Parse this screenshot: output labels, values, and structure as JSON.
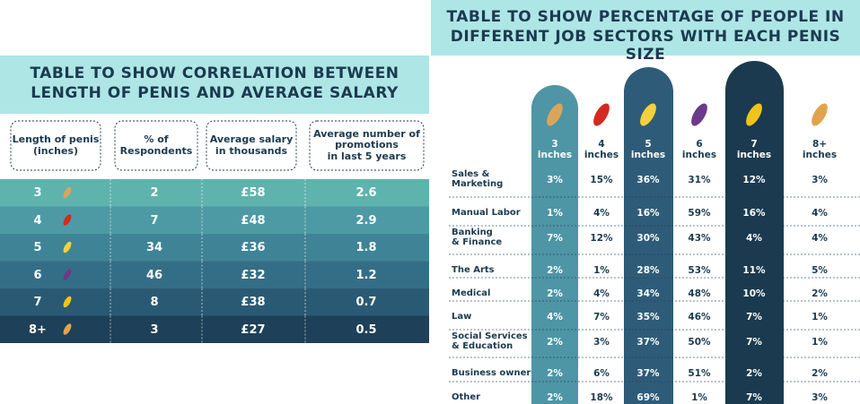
{
  "left": {
    "title": [
      "TABLE TO SHOW CORRELATION BETWEEN",
      "LENGTH OF PENIS AND AVERAGE SALARY"
    ],
    "headers": [
      "Length of penis\n(inches)",
      "% of\nRespondents",
      "Average salary\nin thousands",
      "Average number of\npromotions\nin last 5 years"
    ],
    "rows": [
      [
        "3",
        "2",
        "£58",
        "2.6"
      ],
      [
        "4",
        "7",
        "£48",
        "2.9"
      ],
      [
        "5",
        "34",
        "£36",
        "1.8"
      ],
      [
        "6",
        "46",
        "£32",
        "1.2"
      ],
      [
        "7",
        "8",
        "£38",
        "0.7"
      ],
      [
        "8+",
        "3",
        "£27",
        "0.5"
      ]
    ]
  },
  "right": {
    "title": [
      "TABLE TO SHOW PERCENTAGE OF PEOPLE IN",
      "DIFFERENT JOB SECTORS WITH EACH PENIS SIZE"
    ],
    "columns": [
      "3\ninches",
      "4\ninches",
      "5\ninches",
      "6\ninches",
      "7\ninches",
      "8+\ninches"
    ],
    "rows": [
      {
        "label": "Sales &\nMarketing",
        "values": [
          "3%",
          "15%",
          "36%",
          "31%",
          "12%",
          "3%"
        ]
      },
      {
        "label": "Manual Labor",
        "values": [
          "1%",
          "4%",
          "16%",
          "59%",
          "16%",
          "4%"
        ]
      },
      {
        "label": "Banking\n& Finance",
        "values": [
          "7%",
          "12%",
          "30%",
          "43%",
          "4%",
          "4%"
        ]
      },
      {
        "label": "The Arts",
        "values": [
          "2%",
          "1%",
          "28%",
          "53%",
          "11%",
          "5%"
        ]
      },
      {
        "label": "Medical",
        "values": [
          "2%",
          "4%",
          "34%",
          "48%",
          "10%",
          "2%"
        ]
      },
      {
        "label": "Law",
        "values": [
          "4%",
          "7%",
          "35%",
          "46%",
          "7%",
          "1%"
        ]
      },
      {
        "label": "Social Services\n& Education",
        "values": [
          "2%",
          "3%",
          "37%",
          "50%",
          "7%",
          "1%"
        ]
      },
      {
        "label": "Business owner",
        "values": [
          "2%",
          "6%",
          "37%",
          "51%",
          "2%",
          "2%"
        ]
      },
      {
        "label": "Other",
        "values": [
          "2%",
          "18%",
          "69%",
          "1%",
          "7%",
          "3%"
        ]
      }
    ]
  }
}
